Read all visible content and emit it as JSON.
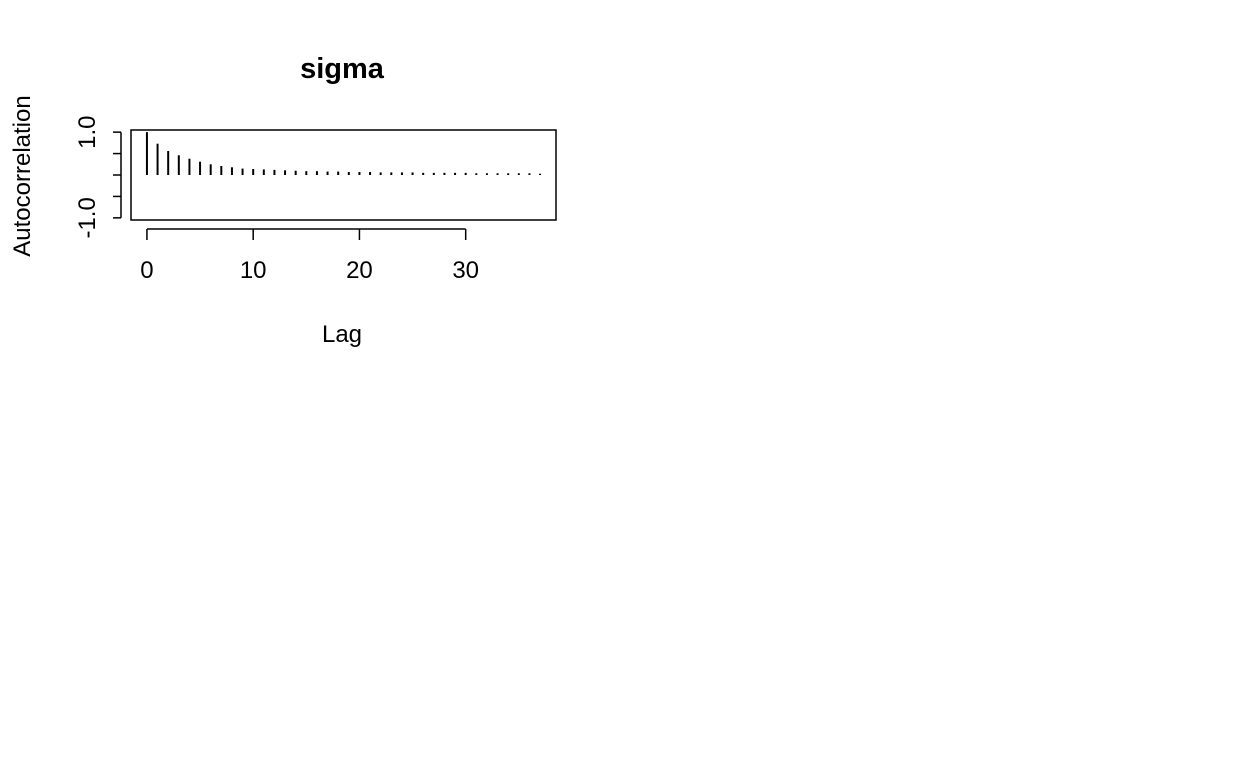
{
  "chart_data": {
    "type": "bar",
    "title": "sigma",
    "xlabel": "Lag",
    "ylabel": "Autocorrelation",
    "xlim": [
      -1.5,
      38.5
    ],
    "ylim": [
      -1.05,
      1.05
    ],
    "x_ticks": [
      0,
      10,
      20,
      30
    ],
    "x_tick_labels": [
      "0",
      "10",
      "20",
      "30"
    ],
    "y_ticks": [
      -1.0,
      -0.5,
      0.0,
      0.5,
      1.0
    ],
    "y_tick_labels": [
      "-1.0",
      "",
      "",
      "",
      "1.0"
    ],
    "grid": false,
    "legend": "none",
    "series": [
      {
        "x": [
          0,
          1,
          2,
          3,
          4,
          5,
          6,
          7,
          8,
          9,
          10,
          11,
          12,
          13,
          14,
          15,
          16,
          17,
          18,
          19,
          20,
          21,
          22,
          23,
          24,
          25,
          26,
          27,
          28,
          29,
          30,
          31,
          32,
          33,
          34,
          35,
          36,
          37
        ],
        "values": [
          1.0,
          0.73,
          0.56,
          0.46,
          0.38,
          0.31,
          0.25,
          0.21,
          0.18,
          0.15,
          0.14,
          0.13,
          0.12,
          0.11,
          0.1,
          0.09,
          0.09,
          0.08,
          0.08,
          0.07,
          0.07,
          0.07,
          0.06,
          0.06,
          0.06,
          0.06,
          0.05,
          0.05,
          0.05,
          0.05,
          0.05,
          0.04,
          0.04,
          0.04,
          0.04,
          0.04,
          0.04,
          0.03
        ]
      }
    ]
  }
}
